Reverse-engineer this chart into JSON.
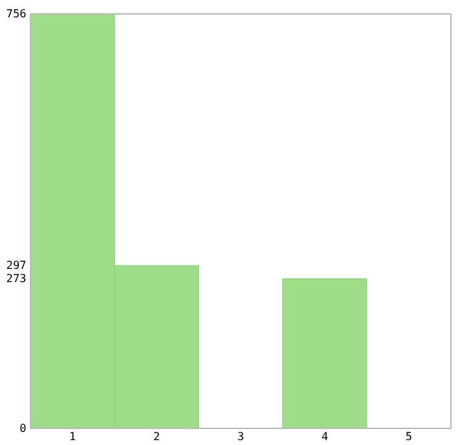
{
  "chart_data": {
    "type": "bar",
    "categories": [
      "1",
      "2",
      "3",
      "4",
      "5"
    ],
    "values": [
      756,
      297,
      0,
      273,
      0
    ],
    "color": "#9ddd88",
    "ylim": [
      0,
      756
    ],
    "yticks": [
      0,
      273,
      297,
      756
    ],
    "grid": false
  }
}
